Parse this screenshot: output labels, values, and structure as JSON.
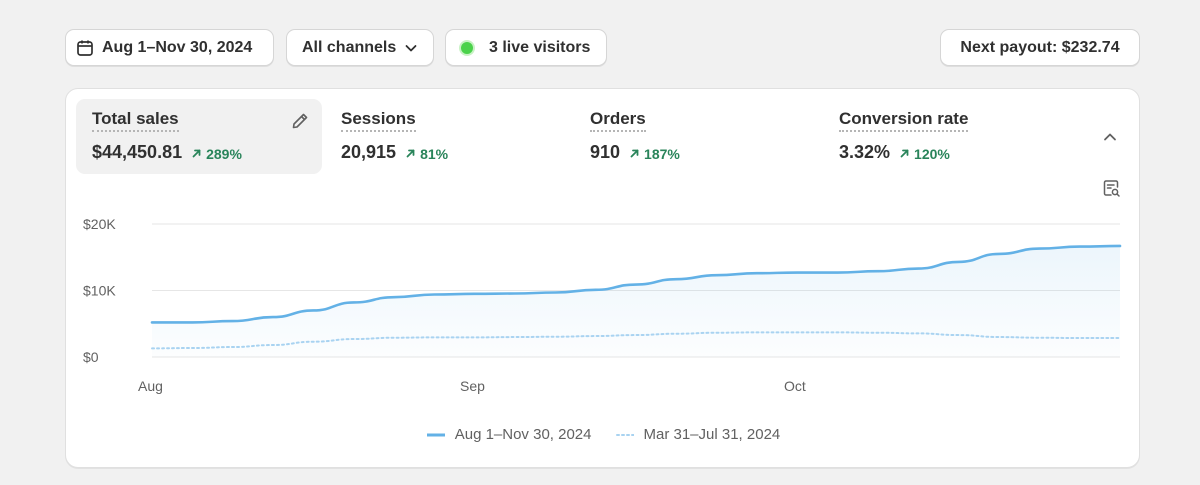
{
  "toolbar": {
    "date_range": "Aug 1–Nov 30, 2024",
    "channels": "All channels",
    "live_visitors": "3 live visitors",
    "next_payout": "Next payout: $232.74"
  },
  "metrics": [
    {
      "label": "Total sales",
      "value": "$44,450.81",
      "change": "289%",
      "active": true
    },
    {
      "label": "Sessions",
      "value": "20,915",
      "change": "81%"
    },
    {
      "label": "Orders",
      "value": "910",
      "change": "187%"
    },
    {
      "label": "Conversion rate",
      "value": "3.32%",
      "change": "120%"
    }
  ],
  "icons": {
    "date": "calendar-icon",
    "channels": "chevron-down-icon",
    "live": "live-dot-icon",
    "edit": "pencil-icon",
    "collapse": "chevron-up-icon",
    "report": "report-search-icon",
    "trend": "arrow-up-right-icon"
  },
  "colors": {
    "accent": "#63b1e6",
    "previous_series": "#a9d3f1",
    "positive": "#29845a",
    "live_dot": "#4bd24b"
  },
  "chart_data": {
    "type": "area",
    "y_ticks": [
      "$20K",
      "$10K",
      "$0"
    ],
    "x_ticks": [
      "Aug",
      "Sep",
      "Oct"
    ],
    "ylim": [
      0,
      20000
    ],
    "grid": true,
    "legend_position": "bottom-center",
    "series": [
      {
        "name": "Aug 1–Nov 30, 2024",
        "style": "solid",
        "values": [
          5200,
          5200,
          5400,
          6000,
          7000,
          8200,
          9000,
          9400,
          9500,
          9550,
          9700,
          10100,
          10900,
          11700,
          12300,
          12600,
          12700,
          12700,
          12900,
          13300,
          14300,
          15500,
          16300,
          16600,
          16700
        ]
      },
      {
        "name": "Mar 31–Jul 31, 2024",
        "style": "dotted",
        "values": [
          1300,
          1350,
          1500,
          1800,
          2300,
          2700,
          2900,
          2950,
          2950,
          3000,
          3050,
          3150,
          3300,
          3500,
          3650,
          3700,
          3700,
          3700,
          3650,
          3550,
          3300,
          3000,
          2900,
          2850,
          2850
        ]
      }
    ]
  }
}
